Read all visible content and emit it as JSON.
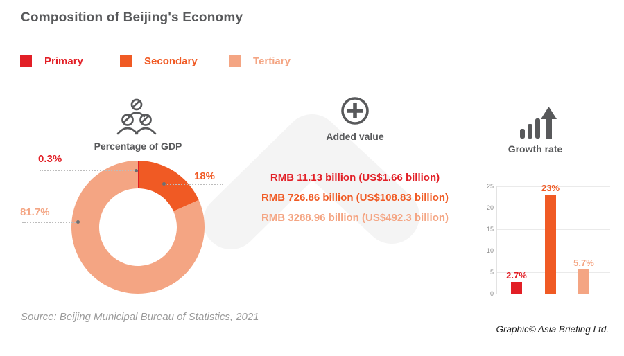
{
  "title": "Composition of Beijing's Economy",
  "legend": {
    "items": [
      {
        "label": "Primary",
        "color": "#E21F26"
      },
      {
        "label": "Secondary",
        "color": "#F05A24"
      },
      {
        "label": "Tertiary",
        "color": "#F4A583"
      }
    ]
  },
  "gdp_section": {
    "icon": "people-group-icon",
    "header": "Percentage of GDP",
    "callouts": [
      {
        "label": "0.3%",
        "color": "#E21F26"
      },
      {
        "label": "18%",
        "color": "#F05A24"
      },
      {
        "label": "81.7%",
        "color": "#F4A583"
      }
    ]
  },
  "added_value_section": {
    "icon": "plus-circle-icon",
    "header": "Added value",
    "items": [
      {
        "text": "RMB 11.13 billion (US$1.66 billion)",
        "color": "#E21F26"
      },
      {
        "text": "RMB 726.86 billion (US$108.83 billion)",
        "color": "#F05A24"
      },
      {
        "text": "RMB 3288.96 billion (US$492.3 billion)",
        "color": "#F4A583"
      }
    ]
  },
  "growth_section": {
    "icon": "rising-bars-arrow-icon",
    "header": "Growth rate"
  },
  "chart_data": [
    {
      "type": "pie",
      "variant": "donut",
      "title": "Percentage of GDP",
      "labels": [
        "Primary",
        "Secondary",
        "Tertiary"
      ],
      "values": [
        0.3,
        18,
        81.7
      ],
      "unit": "%",
      "colors": [
        "#E21F26",
        "#F05A24",
        "#F4A583"
      ],
      "start": "12 o'clock",
      "direction": "clockwise"
    },
    {
      "type": "bar",
      "title": "Growth rate",
      "categories": [
        "Primary",
        "Secondary",
        "Tertiary"
      ],
      "values": [
        2.7,
        23,
        5.7
      ],
      "data_labels": [
        "2.7%",
        "23%",
        "5.7%"
      ],
      "unit": "%",
      "colors": [
        "#E21F26",
        "#F05A24",
        "#F4A583"
      ],
      "ylim": [
        0,
        25
      ],
      "yticks": [
        0,
        5,
        10,
        15,
        20,
        25
      ],
      "grid": true,
      "legend_position": "none"
    }
  ],
  "source": "Source: Beijing Municipal Bureau of Statistics, 2021",
  "credit": "Graphic© Asia Briefing Ltd."
}
